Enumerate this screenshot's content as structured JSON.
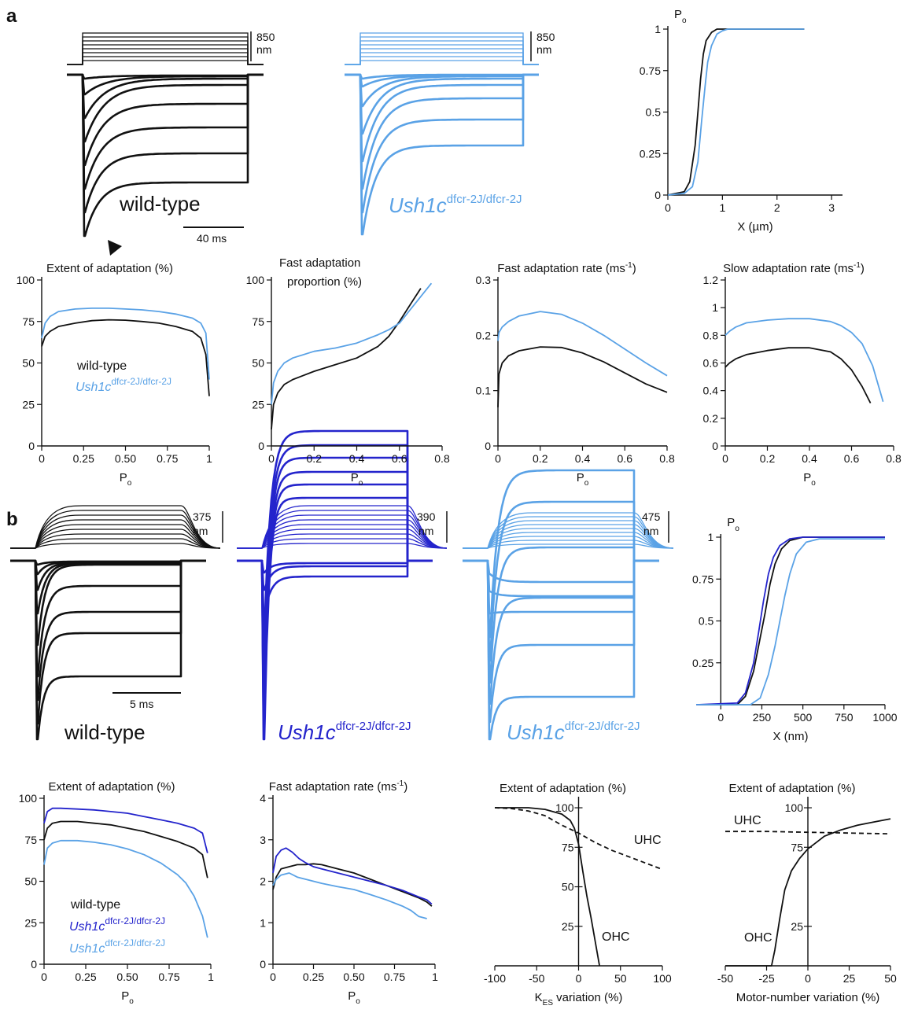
{
  "panels": {
    "a": "a",
    "b": "b"
  },
  "colors": {
    "wt": "#111111",
    "light": "#5aa2e6",
    "dark": "#2424cc"
  },
  "labels": {
    "wild_type": "wild-type",
    "mutant_base": "Ush1c",
    "mutant_sup": "dfcr-2J/dfcr-2J",
    "scale_a_time": "40 ms",
    "scale_a_disp": "850",
    "scale_a_unit": "nm",
    "scale_b_time": "5 ms",
    "scale_b_disp1": "375",
    "scale_b_disp2": "390",
    "scale_b_disp3": "475",
    "scale_b_unit": "nm",
    "uhc": "UHC",
    "ohc": "OHC"
  },
  "chart_data": [
    {
      "id": "a-po-x",
      "type": "line",
      "ylabel": "P",
      "ysub": "o",
      "xlabel": "X (µm)",
      "xlim": [
        0,
        3.2
      ],
      "ylim": [
        0,
        1
      ],
      "xticks": [
        "0",
        "1",
        "2",
        "3"
      ],
      "yticks": [
        "0",
        "0.25",
        "0.5",
        "0.75",
        "1"
      ],
      "series": [
        {
          "color": "wt",
          "x": [
            0,
            0.3,
            0.4,
            0.5,
            0.55,
            0.6,
            0.65,
            0.7,
            0.8,
            0.9,
            1.0,
            1.5,
            2.5
          ],
          "y": [
            0,
            0.02,
            0.08,
            0.3,
            0.5,
            0.7,
            0.85,
            0.93,
            0.98,
            1,
            1,
            1,
            1
          ]
        },
        {
          "color": "light",
          "x": [
            0,
            0.3,
            0.45,
            0.55,
            0.62,
            0.68,
            0.73,
            0.8,
            0.9,
            1.0,
            1.1,
            1.5,
            2.5
          ],
          "y": [
            0,
            0.01,
            0.05,
            0.2,
            0.45,
            0.65,
            0.8,
            0.9,
            0.97,
            0.99,
            1,
            1,
            1
          ]
        }
      ]
    },
    {
      "id": "a-extent",
      "type": "line",
      "title": "Extent of adaptation (%)",
      "xlabel": "P",
      "xsub": "o",
      "xlim": [
        0,
        1
      ],
      "ylim": [
        0,
        100
      ],
      "xticks": [
        "0",
        "0.25",
        "0.50",
        "0.75",
        "1"
      ],
      "yticks": [
        "0",
        "25",
        "50",
        "75",
        "100"
      ],
      "series": [
        {
          "name": "wild-type",
          "color": "wt",
          "x": [
            0,
            0.02,
            0.05,
            0.1,
            0.2,
            0.3,
            0.4,
            0.5,
            0.6,
            0.7,
            0.8,
            0.9,
            0.95,
            0.98,
            1.0
          ],
          "y": [
            60,
            66,
            69,
            72,
            74,
            75.5,
            76,
            75.8,
            75,
            74,
            72,
            69,
            65,
            55,
            30
          ]
        },
        {
          "name": "Ush1c",
          "color": "light",
          "x": [
            0,
            0.02,
            0.05,
            0.1,
            0.2,
            0.3,
            0.4,
            0.5,
            0.6,
            0.7,
            0.8,
            0.9,
            0.95,
            0.98,
            1.0
          ],
          "y": [
            65,
            74,
            78,
            81,
            82.5,
            83,
            83,
            82.5,
            82,
            81,
            79.5,
            77,
            74,
            68,
            40
          ]
        }
      ]
    },
    {
      "id": "a-fastprop",
      "type": "line",
      "title": "Fast adaptation",
      "title2": "proportion (%)",
      "xlabel": "P",
      "xsub": "o",
      "xlim": [
        0,
        0.8
      ],
      "ylim": [
        0,
        100
      ],
      "xticks": [
        "0",
        "0.2",
        "0.4",
        "0.6",
        "0.8"
      ],
      "yticks": [
        "0",
        "25",
        "50",
        "75",
        "100"
      ],
      "series": [
        {
          "color": "wt",
          "x": [
            0,
            0.01,
            0.03,
            0.06,
            0.1,
            0.2,
            0.3,
            0.4,
            0.5,
            0.55,
            0.6,
            0.65,
            0.7
          ],
          "y": [
            10,
            25,
            32,
            37,
            40,
            45,
            49,
            53,
            60,
            66,
            75,
            85,
            95
          ]
        },
        {
          "color": "light",
          "x": [
            0,
            0.01,
            0.03,
            0.06,
            0.1,
            0.2,
            0.3,
            0.4,
            0.5,
            0.55,
            0.6,
            0.65,
            0.7,
            0.75
          ],
          "y": [
            25,
            38,
            45,
            50,
            53,
            57,
            59,
            62,
            67,
            70,
            74,
            82,
            90,
            98
          ]
        }
      ]
    },
    {
      "id": "a-fastrate",
      "type": "line",
      "title": "Fast adaptation rate (ms",
      "title_sup": "-1",
      "title_end": ")",
      "xlabel": "P",
      "xsub": "o",
      "xlim": [
        0,
        0.8
      ],
      "ylim": [
        0,
        0.3
      ],
      "xticks": [
        "0",
        "0.2",
        "0.4",
        "0.6",
        "0.8"
      ],
      "yticks": [
        "0",
        "0.1",
        "0.2",
        "0.3"
      ],
      "series": [
        {
          "color": "wt",
          "x": [
            0,
            0.005,
            0.02,
            0.05,
            0.1,
            0.2,
            0.3,
            0.4,
            0.5,
            0.6,
            0.7,
            0.8
          ],
          "y": [
            0.07,
            0.13,
            0.15,
            0.163,
            0.172,
            0.179,
            0.178,
            0.168,
            0.152,
            0.132,
            0.112,
            0.097
          ]
        },
        {
          "color": "light",
          "x": [
            0,
            0.005,
            0.02,
            0.05,
            0.1,
            0.2,
            0.3,
            0.4,
            0.5,
            0.6,
            0.7,
            0.8
          ],
          "y": [
            0.19,
            0.205,
            0.215,
            0.225,
            0.235,
            0.243,
            0.238,
            0.222,
            0.2,
            0.175,
            0.15,
            0.127
          ]
        }
      ]
    },
    {
      "id": "a-slowrate",
      "type": "line",
      "title": "Slow adaptation rate (ms",
      "title_sup": "-1",
      "title_end": ")",
      "xlabel": "P",
      "xsub": "o",
      "xlim": [
        0,
        0.8
      ],
      "ylim": [
        0,
        1.2
      ],
      "xticks": [
        "0",
        "0.2",
        "0.4",
        "0.6",
        "0.8"
      ],
      "yticks": [
        "0",
        "0.2",
        "0.4",
        "0.6",
        "0.8",
        "1",
        "1.2"
      ],
      "series": [
        {
          "color": "wt",
          "x": [
            0,
            0.02,
            0.05,
            0.1,
            0.2,
            0.3,
            0.4,
            0.5,
            0.55,
            0.6,
            0.65,
            0.69
          ],
          "y": [
            0.57,
            0.6,
            0.63,
            0.66,
            0.69,
            0.71,
            0.71,
            0.68,
            0.63,
            0.55,
            0.43,
            0.31
          ]
        },
        {
          "color": "light",
          "x": [
            0,
            0.02,
            0.05,
            0.1,
            0.2,
            0.3,
            0.4,
            0.5,
            0.55,
            0.6,
            0.65,
            0.7,
            0.75
          ],
          "y": [
            0.8,
            0.83,
            0.86,
            0.89,
            0.91,
            0.92,
            0.92,
            0.9,
            0.87,
            0.82,
            0.74,
            0.58,
            0.32
          ]
        }
      ]
    },
    {
      "id": "b-po-x",
      "type": "line",
      "ylabel": "P",
      "ysub": "o",
      "xlabel": "X (nm)",
      "xlim": [
        -150,
        1000
      ],
      "ylim": [
        0,
        1
      ],
      "xticks": [
        "0",
        "250",
        "500",
        "750",
        "1000"
      ],
      "yticks": [
        "0.25",
        "0.5",
        "0.75",
        "1"
      ],
      "series": [
        {
          "color": "wt",
          "x": [
            -150,
            100,
            150,
            200,
            240,
            270,
            300,
            330,
            370,
            420,
            500,
            700,
            1000
          ],
          "y": [
            0,
            0,
            0.05,
            0.2,
            0.4,
            0.55,
            0.72,
            0.84,
            0.93,
            0.98,
            1,
            1,
            1
          ]
        },
        {
          "color": "dark",
          "x": [
            -150,
            100,
            150,
            200,
            230,
            260,
            290,
            320,
            360,
            420,
            500,
            700,
            1000
          ],
          "y": [
            0,
            0.01,
            0.07,
            0.25,
            0.43,
            0.62,
            0.78,
            0.88,
            0.95,
            0.99,
            1,
            1,
            1
          ]
        },
        {
          "color": "light",
          "x": [
            -150,
            180,
            240,
            290,
            330,
            360,
            390,
            420,
            460,
            520,
            600,
            750,
            1000
          ],
          "y": [
            0,
            0,
            0.04,
            0.18,
            0.35,
            0.5,
            0.65,
            0.78,
            0.9,
            0.97,
            0.99,
            0.99,
            0.99
          ]
        }
      ]
    },
    {
      "id": "b-extent",
      "type": "line",
      "title": "Extent of adaptation (%)",
      "xlabel": "P",
      "xsub": "o",
      "xlim": [
        0,
        1
      ],
      "ylim": [
        0,
        100
      ],
      "xticks": [
        "0",
        "0.25",
        "0.50",
        "0.75",
        "1"
      ],
      "yticks": [
        "0",
        "25",
        "50",
        "75",
        "100"
      ],
      "series": [
        {
          "name": "wild-type",
          "color": "wt",
          "x": [
            0,
            0.02,
            0.05,
            0.1,
            0.2,
            0.3,
            0.4,
            0.5,
            0.6,
            0.7,
            0.8,
            0.9,
            0.95,
            0.98
          ],
          "y": [
            75,
            82,
            85,
            86,
            86,
            85,
            84,
            82,
            80,
            77,
            74,
            70,
            66,
            52
          ]
        },
        {
          "name": "Ush1c",
          "color": "dark",
          "x": [
            0,
            0.02,
            0.05,
            0.1,
            0.2,
            0.3,
            0.4,
            0.5,
            0.6,
            0.7,
            0.8,
            0.9,
            0.95,
            0.98
          ],
          "y": [
            85,
            92,
            94,
            94,
            93.5,
            93,
            92,
            91,
            89,
            87,
            85,
            82,
            79,
            67
          ]
        },
        {
          "name": "Ush1c",
          "color": "light",
          "x": [
            0,
            0.02,
            0.05,
            0.1,
            0.2,
            0.3,
            0.4,
            0.5,
            0.6,
            0.7,
            0.8,
            0.85,
            0.9,
            0.95,
            0.98
          ],
          "y": [
            60,
            70,
            73,
            74.5,
            74.5,
            73.5,
            72,
            69.5,
            66,
            61,
            54,
            49,
            41,
            29,
            16
          ]
        }
      ]
    },
    {
      "id": "b-fastrate",
      "type": "line",
      "title": "Fast adaptation rate (ms",
      "title_sup": "-1",
      "title_end": ")",
      "xlabel": "P",
      "xsub": "o",
      "xlim": [
        0,
        1
      ],
      "ylim": [
        0,
        4
      ],
      "xticks": [
        "0",
        "0.25",
        "0.50",
        "0.75",
        "1"
      ],
      "yticks": [
        "0",
        "1",
        "2",
        "3",
        "4"
      ],
      "series": [
        {
          "color": "wt",
          "x": [
            0,
            0.02,
            0.05,
            0.1,
            0.15,
            0.2,
            0.25,
            0.3,
            0.4,
            0.5,
            0.6,
            0.7,
            0.8,
            0.9,
            0.95,
            0.98
          ],
          "y": [
            1.8,
            2.1,
            2.3,
            2.35,
            2.4,
            2.4,
            2.42,
            2.4,
            2.3,
            2.2,
            2.05,
            1.9,
            1.75,
            1.6,
            1.5,
            1.4
          ]
        },
        {
          "color": "dark",
          "x": [
            0,
            0.02,
            0.05,
            0.08,
            0.12,
            0.16,
            0.2,
            0.25,
            0.3,
            0.4,
            0.5,
            0.6,
            0.7,
            0.8,
            0.9,
            0.95,
            0.98
          ],
          "y": [
            2.2,
            2.6,
            2.75,
            2.8,
            2.7,
            2.55,
            2.45,
            2.35,
            2.3,
            2.2,
            2.1,
            2,
            1.9,
            1.78,
            1.62,
            1.55,
            1.45
          ]
        },
        {
          "color": "light",
          "x": [
            0,
            0.02,
            0.05,
            0.1,
            0.15,
            0.2,
            0.25,
            0.3,
            0.4,
            0.5,
            0.6,
            0.7,
            0.8,
            0.85,
            0.9,
            0.95
          ],
          "y": [
            1.9,
            2.05,
            2.15,
            2.2,
            2.1,
            2.05,
            2.0,
            1.95,
            1.87,
            1.8,
            1.68,
            1.55,
            1.4,
            1.3,
            1.15,
            1.1
          ]
        }
      ]
    },
    {
      "id": "b-kes",
      "type": "line",
      "title": "Extent of adaptation (%)",
      "xlabel": "K",
      "xsub": "ES",
      "xlabel_end": " variation (%)",
      "xlim": [
        -100,
        100
      ],
      "ylim": [
        0,
        105
      ],
      "xticks": [
        "-100",
        "-50",
        "0",
        "50",
        "100"
      ],
      "yticks": [
        "25",
        "50",
        "75",
        "100"
      ],
      "series": [
        {
          "name": "UHC",
          "color": "wt",
          "dashed": true,
          "x": [
            -100,
            -80,
            -60,
            -40,
            -20,
            0,
            20,
            40,
            60,
            80,
            100
          ],
          "y": [
            100,
            99.5,
            98,
            95,
            89,
            84,
            78,
            73,
            69,
            65,
            61
          ]
        },
        {
          "name": "OHC",
          "color": "wt",
          "x": [
            -100,
            -60,
            -40,
            -20,
            -10,
            -5,
            0,
            5,
            10,
            15,
            20,
            25
          ],
          "y": [
            100,
            100,
            99,
            96,
            92,
            87,
            77,
            60,
            44,
            30,
            15,
            0
          ]
        }
      ]
    },
    {
      "id": "b-motor",
      "type": "line",
      "title": "Extent of adaptation (%)",
      "xlabel": "Motor-number  variation (%)",
      "xlim": [
        -50,
        50
      ],
      "ylim": [
        0,
        105
      ],
      "xticks": [
        "-50",
        "-25",
        "0",
        "25",
        "50"
      ],
      "yticks": [
        "25",
        "75",
        "100"
      ],
      "series": [
        {
          "name": "UHC",
          "color": "wt",
          "dashed": true,
          "x": [
            -50,
            -25,
            0,
            25,
            50
          ],
          "y": [
            85,
            85,
            84.5,
            84,
            83.5
          ]
        },
        {
          "name": "OHC",
          "color": "wt",
          "x": [
            -50,
            -22,
            -20,
            -17,
            -14,
            -10,
            -5,
            0,
            5,
            10,
            20,
            30,
            40,
            50
          ],
          "y": [
            0,
            0,
            10,
            30,
            48,
            60,
            68,
            74,
            78,
            82,
            86,
            89,
            91,
            93
          ]
        }
      ]
    }
  ]
}
